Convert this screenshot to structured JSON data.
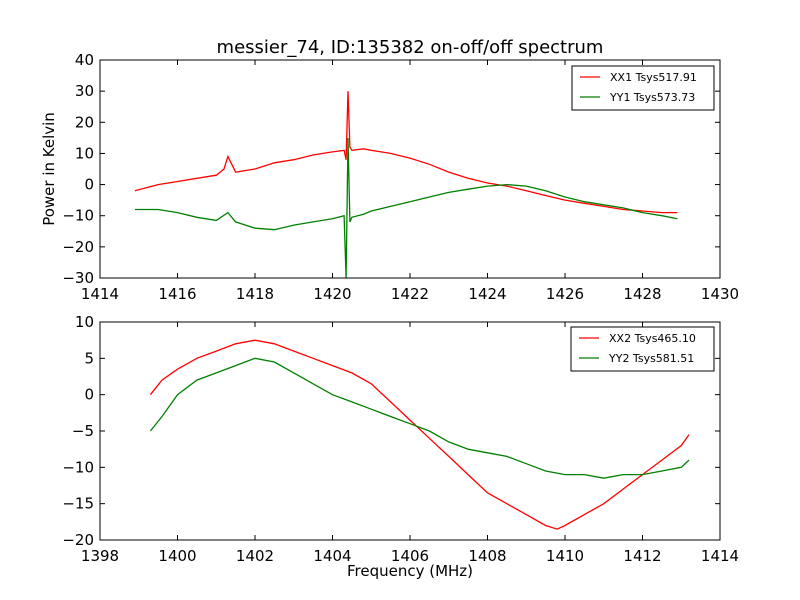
{
  "chart_data": [
    {
      "type": "line",
      "title": "messier_74, ID:135382 on-off/off spectrum",
      "xlabel": "",
      "ylabel": "Power in Kelvin",
      "xlim": [
        1414,
        1430
      ],
      "ylim": [
        -30,
        40
      ],
      "xticks": [
        "1414",
        "1416",
        "1418",
        "1420",
        "1422",
        "1424",
        "1426",
        "1428",
        "1430"
      ],
      "yticks": [
        "40",
        "30",
        "20",
        "10",
        "0",
        "−10",
        "−20",
        "−30"
      ],
      "legend_position": "top-right",
      "series": [
        {
          "name": "XX1 Tsys517.91",
          "color": "#ff0000",
          "x": [
            1414.9,
            1415.5,
            1416.0,
            1416.5,
            1417.0,
            1417.2,
            1417.3,
            1417.5,
            1418.0,
            1418.5,
            1419.0,
            1419.5,
            1420.0,
            1420.3,
            1420.35,
            1420.4,
            1420.45,
            1420.5,
            1420.8,
            1421.0,
            1421.5,
            1422.0,
            1422.5,
            1423.0,
            1423.5,
            1424.0,
            1424.5,
            1425.0,
            1425.5,
            1426.0,
            1426.5,
            1427.0,
            1427.5,
            1428.0,
            1428.5,
            1428.9
          ],
          "y": [
            -2,
            0,
            1,
            2,
            3,
            5,
            9,
            4,
            5,
            7,
            8,
            9.5,
            10.5,
            11,
            8,
            30,
            12,
            11,
            11.5,
            11,
            10,
            8.5,
            6.5,
            4,
            2,
            0.5,
            -0.5,
            -2,
            -3.5,
            -5,
            -6,
            -7,
            -8,
            -8.5,
            -9,
            -9
          ]
        },
        {
          "name": "YY1 Tsys573.73",
          "color": "#008000",
          "x": [
            1414.9,
            1415.5,
            1416.0,
            1416.5,
            1417.0,
            1417.3,
            1417.5,
            1418.0,
            1418.5,
            1419.0,
            1419.5,
            1420.0,
            1420.3,
            1420.35,
            1420.4,
            1420.45,
            1420.5,
            1420.8,
            1421.0,
            1421.5,
            1422.0,
            1422.5,
            1423.0,
            1423.5,
            1424.0,
            1424.5,
            1425.0,
            1425.5,
            1426.0,
            1426.5,
            1427.0,
            1427.5,
            1428.0,
            1428.5,
            1428.9
          ],
          "y": [
            -8,
            -8,
            -9,
            -10.5,
            -11.5,
            -9,
            -12,
            -14,
            -14.5,
            -13,
            -12,
            -11,
            -10,
            -30,
            15,
            -12,
            -10.5,
            -9.5,
            -8.5,
            -7,
            -5.5,
            -4,
            -2.5,
            -1.5,
            -0.5,
            0,
            -0.5,
            -2,
            -4,
            -5.5,
            -6.5,
            -7.5,
            -9,
            -10,
            -11
          ]
        }
      ]
    },
    {
      "type": "line",
      "title": "",
      "xlabel": "Frequency (MHz)",
      "ylabel": "",
      "xlim": [
        1398,
        1414
      ],
      "ylim": [
        -20,
        10
      ],
      "xticks": [
        "1398",
        "1400",
        "1402",
        "1404",
        "1406",
        "1408",
        "1410",
        "1412",
        "1414"
      ],
      "yticks": [
        "10",
        "5",
        "0",
        "−5",
        "−10",
        "−15",
        "−20"
      ],
      "legend_position": "top-right",
      "series": [
        {
          "name": "XX2 Tsys465.10",
          "color": "#ff0000",
          "x": [
            1399.3,
            1399.6,
            1400.0,
            1400.5,
            1401.0,
            1401.5,
            1402.0,
            1402.5,
            1403.0,
            1403.5,
            1404.0,
            1404.5,
            1405.0,
            1405.5,
            1406.0,
            1406.5,
            1407.0,
            1407.5,
            1408.0,
            1408.5,
            1409.0,
            1409.5,
            1409.8,
            1410.0,
            1410.5,
            1411.0,
            1411.5,
            1412.0,
            1412.5,
            1413.0,
            1413.2
          ],
          "y": [
            0,
            2,
            3.5,
            5,
            6,
            7,
            7.5,
            7,
            6,
            5,
            4,
            3,
            1.5,
            -1,
            -3.5,
            -6,
            -8.5,
            -11,
            -13.5,
            -15,
            -16.5,
            -18,
            -18.5,
            -18,
            -16.5,
            -15,
            -13,
            -11,
            -9,
            -7,
            -5.5
          ]
        },
        {
          "name": "YY2 Tsys581.51",
          "color": "#008000",
          "x": [
            1399.3,
            1399.6,
            1400.0,
            1400.5,
            1401.0,
            1401.5,
            1402.0,
            1402.5,
            1403.0,
            1403.5,
            1404.0,
            1404.5,
            1405.0,
            1405.5,
            1406.0,
            1406.5,
            1407.0,
            1407.5,
            1408.0,
            1408.5,
            1409.0,
            1409.5,
            1410.0,
            1410.5,
            1411.0,
            1411.5,
            1412.0,
            1412.5,
            1413.0,
            1413.2
          ],
          "y": [
            -5,
            -3,
            0,
            2,
            3,
            4,
            5,
            4.5,
            3,
            1.5,
            0,
            -1,
            -2,
            -3,
            -4,
            -5,
            -6.5,
            -7.5,
            -8,
            -8.5,
            -9.5,
            -10.5,
            -11,
            -11,
            -11.5,
            -11,
            -11,
            -10.5,
            -10,
            -9
          ]
        }
      ]
    }
  ]
}
